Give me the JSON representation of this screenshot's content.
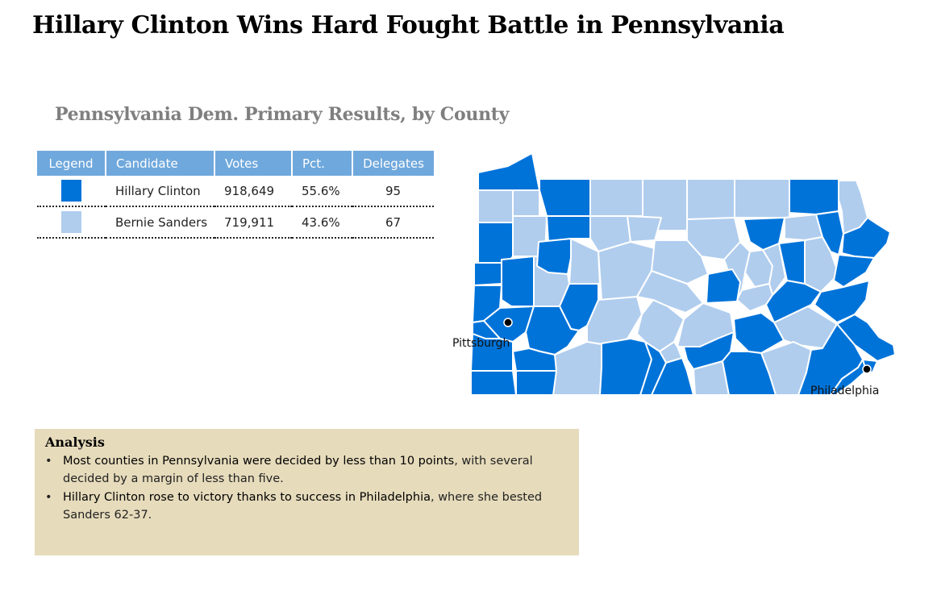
{
  "title": "Hillary Clinton Wins Hard Fought Battle in Pennsylvania",
  "subtitle": "Pennsylvania Dem. Primary Results, by County",
  "colors": {
    "clinton": "#0073d9",
    "sanders": "#b0cdee",
    "table_header": "#6fa8dc",
    "analysis_bg": "#e6dbbb"
  },
  "table": {
    "headers": [
      "Legend",
      "Candidate",
      "Votes",
      "Pct.",
      "Delegates"
    ],
    "rows": [
      {
        "candidate": "Hillary Clinton",
        "votes": "918,649",
        "pct": "55.6%",
        "delegates": "95"
      },
      {
        "candidate": "Bernie Sanders",
        "votes": "719,911",
        "pct": "43.6%",
        "delegates": "67"
      }
    ]
  },
  "map": {
    "cities": [
      "Pittsburgh",
      "Philadelphia"
    ]
  },
  "analysis": {
    "title": "Analysis",
    "bullets": [
      {
        "bold": "Most counties in Pennsylvania were decided by less than 10 points",
        "rest": ", with several decided by a margin of less than five."
      },
      {
        "bold": "Hillary Clinton rose to victory thanks to success in Philadelphia",
        "rest": ", where she bested Sanders 62-37."
      }
    ]
  }
}
